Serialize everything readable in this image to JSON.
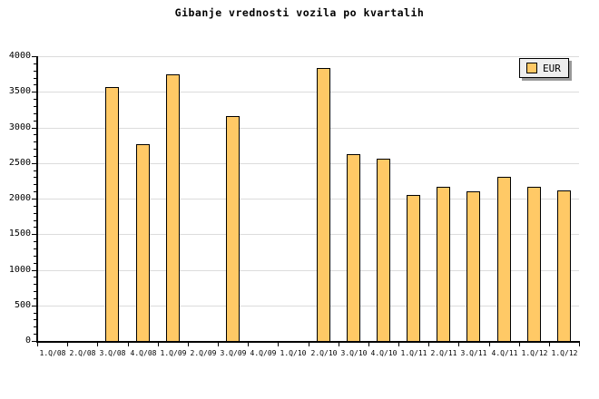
{
  "chart_data": {
    "type": "bar",
    "title": "Gibanje vrednosti vozila po kvartalih",
    "categories": [
      "1.Q/08",
      "2.Q/08",
      "3.Q/08",
      "4.Q/08",
      "1.Q/09",
      "2.Q/09",
      "3.Q/09",
      "4.Q/09",
      "1.Q/10",
      "2.Q/10",
      "3.Q/10",
      "4.Q/10",
      "1.Q/11",
      "2.Q/11",
      "3.Q/11",
      "4.Q/11",
      "1.Q/12",
      "1.Q/12"
    ],
    "series": [
      {
        "name": "EUR",
        "values": [
          0,
          0,
          3570,
          2770,
          3750,
          0,
          3160,
          0,
          0,
          3840,
          2630,
          2560,
          2050,
          2170,
          2100,
          2300,
          2170,
          2110
        ]
      }
    ],
    "legend": [
      "EUR"
    ],
    "xlabel": "",
    "ylabel": "",
    "ylim": [
      0,
      4000
    ],
    "ytick_major": 500,
    "ytick_minor": 100,
    "grid": "horizontal-major",
    "legend_position": "top-right",
    "colors": {
      "bar_fill": "#ffc966",
      "bar_border": "#000000",
      "grid": "#dcdcdc",
      "axis": "#000000",
      "text": "#000000",
      "legend_bg": "#eeeeee",
      "legend_shadow": "#999999",
      "background": "#ffffff"
    }
  }
}
